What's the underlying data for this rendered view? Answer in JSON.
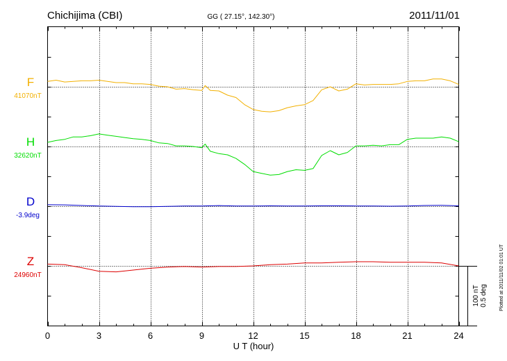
{
  "header": {
    "station": "Chichijima (CBI)",
    "coords": "GG ( 27.15°, 142.30°)",
    "date": "2011/11/01"
  },
  "footer": {
    "plotted": "Plotted at 2011/11/02 01:01  UT"
  },
  "scale_bar": {
    "nt": "100 nT",
    "deg": "0.5 deg"
  },
  "colors": {
    "F": "#f2b000",
    "H": "#00dd00",
    "D": "#0000cc",
    "Z": "#dd0000",
    "axis": "#000000"
  },
  "chart_data": {
    "type": "line",
    "title": "Chichijima (CBI)",
    "xlabel": "U T (hour)",
    "xlim": [
      0,
      24
    ],
    "xticks": [
      0,
      3,
      6,
      9,
      12,
      15,
      18,
      21,
      24
    ],
    "grid": true,
    "series": [
      {
        "name": "F",
        "baseline_label": "41070nT",
        "baseline": 41070,
        "unit": "nT",
        "x": [
          0,
          0.5,
          1,
          1.5,
          2,
          2.5,
          3,
          3.5,
          4,
          4.5,
          5,
          5.5,
          6,
          6.5,
          7,
          7.5,
          8,
          8.5,
          9,
          9.2,
          9.5,
          10,
          10.5,
          11,
          11.5,
          12,
          12.5,
          13,
          13.5,
          14,
          14.5,
          15,
          15.5,
          16,
          16.5,
          17,
          17.5,
          18,
          18.5,
          19,
          19.5,
          20,
          20.5,
          21,
          21.5,
          22,
          22.5,
          23,
          23.5,
          24
        ],
        "values": [
          41079,
          41081,
          41078,
          41079,
          41080,
          41080,
          41081,
          41079,
          41077,
          41077,
          41075,
          41075,
          41074,
          41071,
          41070,
          41066,
          41067,
          41065,
          41064,
          41072,
          41064,
          41063,
          41056,
          41052,
          41040,
          41032,
          41029,
          41028,
          41030,
          41035,
          41038,
          41040,
          41047,
          41065,
          41070,
          41063,
          41066,
          41075,
          41073,
          41074,
          41074,
          41074,
          41075,
          41079,
          41080,
          41080,
          41083,
          41083,
          41080,
          41074
        ]
      },
      {
        "name": "H",
        "baseline_label": "32620nT",
        "baseline": 32620,
        "unit": "nT",
        "x": [
          0,
          0.5,
          1,
          1.5,
          2,
          2.5,
          3,
          3.5,
          4,
          4.5,
          5,
          5.5,
          6,
          6.5,
          7,
          7.5,
          8,
          8.5,
          9,
          9.2,
          9.5,
          10,
          10.5,
          11,
          11.5,
          12,
          12.5,
          13,
          13.5,
          14,
          14.5,
          15,
          15.5,
          16,
          16.5,
          17,
          17.5,
          18,
          18.5,
          19,
          19.5,
          20,
          20.5,
          21,
          21.5,
          22,
          22.5,
          23,
          23.5,
          24
        ],
        "values": [
          32627,
          32630,
          32632,
          32636,
          32636,
          32638,
          32641,
          32639,
          32637,
          32635,
          32633,
          32632,
          32630,
          32626,
          32625,
          32621,
          32621,
          32620,
          32618,
          32624,
          32612,
          32608,
          32606,
          32600,
          32590,
          32578,
          32575,
          32572,
          32573,
          32578,
          32581,
          32580,
          32583,
          32605,
          32613,
          32606,
          32610,
          32621,
          32621,
          32622,
          32621,
          32623,
          32623,
          32632,
          32634,
          32634,
          32634,
          32636,
          32634,
          32628
        ]
      },
      {
        "name": "D",
        "baseline_label": "-3.9deg",
        "baseline": -3.9,
        "unit": "deg",
        "x": [
          0,
          1,
          2,
          3,
          4,
          5,
          6,
          7,
          8,
          9,
          10,
          11,
          12,
          13,
          14,
          15,
          16,
          17,
          18,
          19,
          20,
          21,
          22,
          23,
          24
        ],
        "values": [
          -3.888,
          -3.889,
          -3.894,
          -3.899,
          -3.902,
          -3.904,
          -3.904,
          -3.902,
          -3.898,
          -3.898,
          -3.895,
          -3.898,
          -3.899,
          -3.897,
          -3.898,
          -3.898,
          -3.897,
          -3.897,
          -3.898,
          -3.899,
          -3.9,
          -3.898,
          -3.894,
          -3.893,
          -3.897
        ]
      },
      {
        "name": "Z",
        "baseline_label": "24960nT",
        "baseline": 24960,
        "unit": "nT",
        "x": [
          0,
          1,
          2,
          3,
          4,
          5,
          6,
          7,
          8,
          9,
          10,
          11,
          12,
          13,
          14,
          15,
          16,
          17,
          18,
          19,
          20,
          21,
          22,
          23,
          24
        ],
        "values": [
          24963,
          24962,
          24957,
          24951,
          24950,
          24953,
          24956,
          24958,
          24959,
          24958,
          24959,
          24959,
          24960,
          24962,
          24963,
          24965,
          24965,
          24966,
          24967,
          24967,
          24966,
          24966,
          24966,
          24965,
          24960
        ]
      }
    ]
  }
}
